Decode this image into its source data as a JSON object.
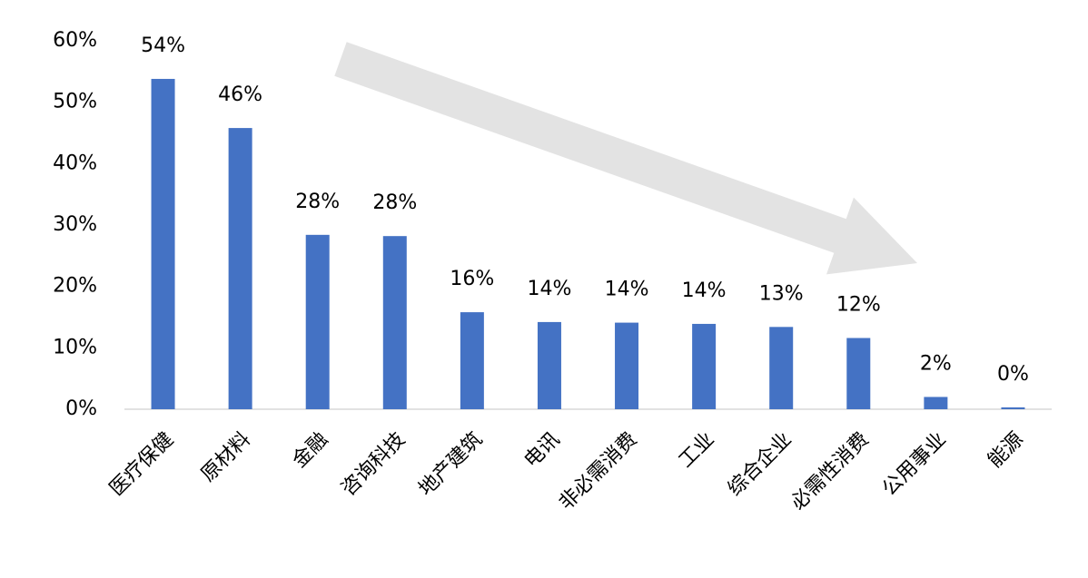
{
  "chart_data": {
    "type": "bar",
    "categories": [
      "医疗保健",
      "原材料",
      "金融",
      "咨询科技",
      "地产建筑",
      "电讯",
      "非必需消费",
      "工业",
      "综合企业",
      "必需性消费",
      "公用事业",
      "能源"
    ],
    "values": [
      53.8,
      45.8,
      28.4,
      28.2,
      15.8,
      14.2,
      14.1,
      13.9,
      13.4,
      11.6,
      2.0,
      0.3
    ],
    "value_labels": [
      "54%",
      "46%",
      "28%",
      "28%",
      "16%",
      "14%",
      "14%",
      "14%",
      "13%",
      "12%",
      "2%",
      "0%"
    ],
    "color": "#4472c4",
    "ylim": [
      0,
      60
    ],
    "yticks": [
      {
        "value": 0,
        "label": "0%"
      },
      {
        "value": 10,
        "label": "10%"
      },
      {
        "value": 20,
        "label": "20%"
      },
      {
        "value": 30,
        "label": "30%"
      },
      {
        "value": 40,
        "label": "40%"
      },
      {
        "value": 50,
        "label": "50%"
      },
      {
        "value": 60,
        "label": "60%"
      }
    ],
    "grid": false
  }
}
